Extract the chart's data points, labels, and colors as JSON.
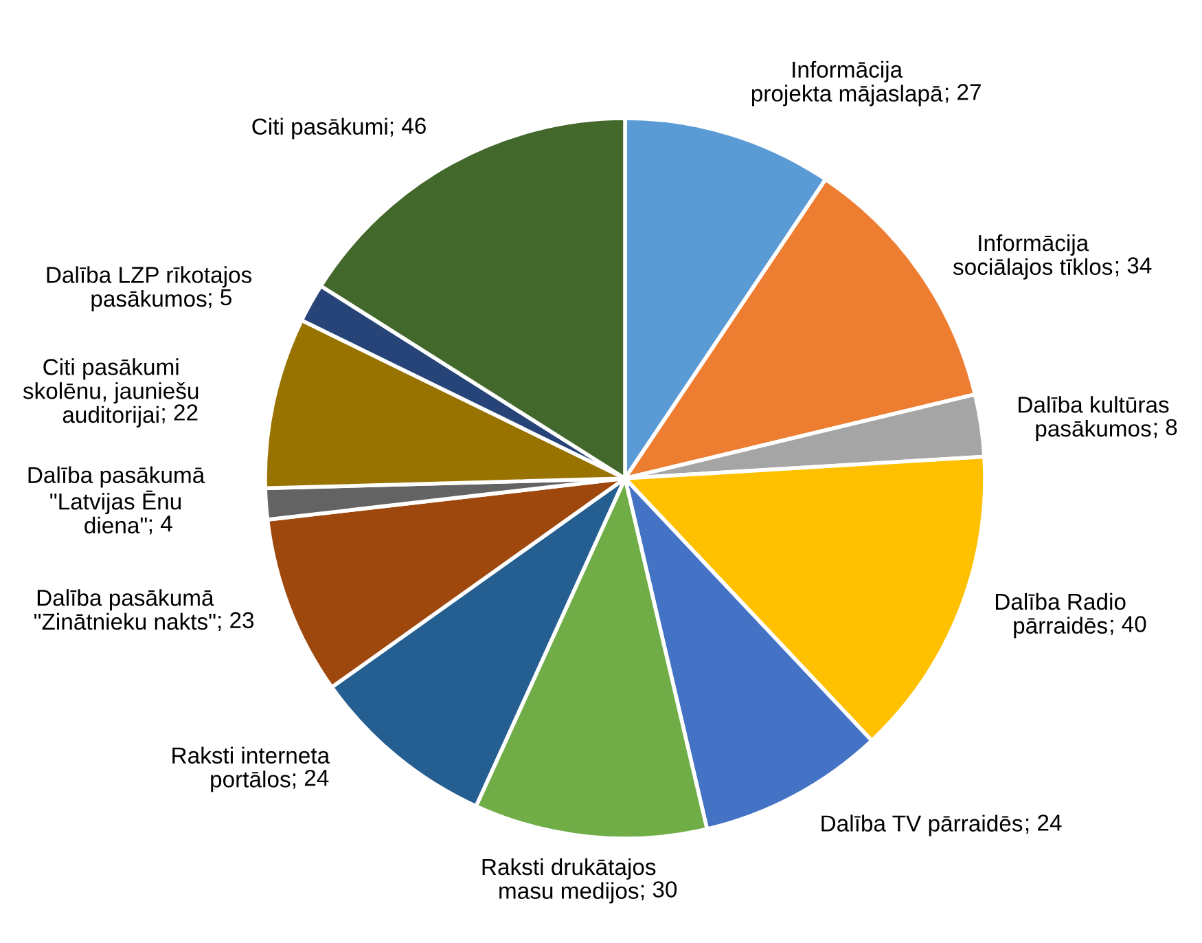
{
  "chart_data": {
    "type": "pie",
    "categories": [
      "Informācija\nprojekta mājaslapā",
      "Informācija\nsociālajos tīklos",
      "Dalība kultūras\npasākumos",
      "Dalība Radio\npārraidēs",
      "Dalība TV pārraidēs",
      "Raksti drukātajos\nmasu medijos",
      "Raksti interneta\nportālos",
      "Dalība pasākumā\n\"Zinātnieku nakts\"",
      "Dalība pasākumā\n\"Latvijas Ēnu\ndiena\"",
      "Citi pasākumi\nskolēnu, jauniešu\nauditorijai",
      "Dalība LZP rīkotajos\npasākumos",
      "Citi pasākumi"
    ],
    "values": [
      27,
      34,
      8,
      40,
      24,
      30,
      24,
      23,
      4,
      22,
      5,
      46
    ],
    "colors": [
      "#5b9bd5",
      "#ed7d31",
      "#a5a5a5",
      "#ffc000",
      "#4472c4",
      "#70ad47",
      "#255e91",
      "#9e480e",
      "#636363",
      "#997300",
      "#264478",
      "#43682b"
    ],
    "value_labels": [
      "; 27",
      "; 34",
      "; 8",
      "; 40",
      "; 24",
      "; 30",
      "; 24",
      "; 23",
      "; 4",
      "; 22",
      "; 5",
      "; 46"
    ]
  }
}
